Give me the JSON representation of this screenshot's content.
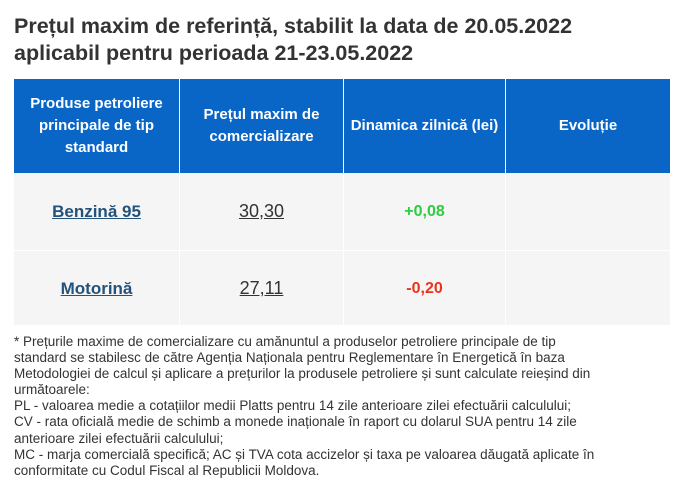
{
  "title": {
    "line1": "Prețul maxim de referință, stabilit la data de 20.05.2022",
    "line2": "aplicabil pentru perioada 21-23.05.2022"
  },
  "table": {
    "header_bg": "#0966c7",
    "headers": {
      "products_line1": "Produse petroliere",
      "products_line2": "principale de tip",
      "products_line3": "standard",
      "price_line1": "Prețul maxim de",
      "price_line2": "comercializare",
      "dynamics": "Dinamica zilnică (lei)",
      "evolution": "Evoluție"
    },
    "rows": [
      {
        "product": "Benzină 95",
        "price": "30,30",
        "change": "+0,08",
        "change_color": "#2ecc40"
      },
      {
        "product": "Motorină",
        "price": "27,11",
        "change": "-0,20",
        "change_color": "#e8341c"
      }
    ]
  },
  "notes": {
    "l1": "* Prețurile maxime de comercializare cu amănuntul a produselor petroliere principale de tip",
    "l2": "standard se stabilesc de către Agenția Naționala pentru Reglementare în Energetică în baza",
    "l3": "Metodologiei de calcul și aplicare a prețurilor la produsele petroliere și sunt calculate reieșind din",
    "l4": "următoarele:",
    "l5": "PL - valoarea medie a cotațiilor medii Platts pentru 14 zile anterioare zilei efectuării calculului;",
    "l6": "CV - rata oficială medie de schimb a monede inaționale în raport cu dolarul SUA pentru 14 zile",
    "l7": "anterioare zilei efectuării calculului;",
    "l8": "MC - marja comercială specifică; AC și TVA cota accizelor și taxa pe valoarea dăugată aplicate în",
    "l9": "conformitate cu Codul Fiscal al Republicii Moldova."
  }
}
